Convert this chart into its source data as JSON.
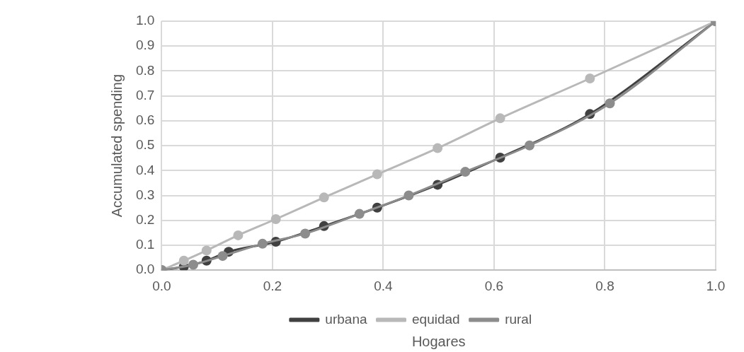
{
  "chart_data": {
    "type": "line",
    "xlabel": "Hogares",
    "ylabel": "Accumulated spending",
    "series": [
      {
        "name": "urbana",
        "color": "#404040",
        "x": [
          0,
          0.04,
          0.081,
          0.121,
          0.206,
          0.293,
          0.389,
          0.498,
          0.611,
          0.773,
          1
        ],
        "values": [
          0,
          0.014,
          0.038,
          0.074,
          0.114,
          0.177,
          0.251,
          0.343,
          0.452,
          0.627,
          1
        ]
      },
      {
        "name": "equidad",
        "color": "#b8b8b8",
        "x": [
          0,
          0.04,
          0.081,
          0.138,
          0.206,
          0.293,
          0.389,
          0.498,
          0.611,
          0.773,
          1
        ],
        "values": [
          0,
          0.038,
          0.079,
          0.14,
          0.205,
          0.292,
          0.385,
          0.49,
          0.61,
          0.77,
          1
        ]
      },
      {
        "name": "rural",
        "color": "#8c8c8c",
        "x": [
          0,
          0.057,
          0.11,
          0.182,
          0.259,
          0.357,
          0.446,
          0.548,
          0.664,
          0.809,
          1
        ],
        "values": [
          0,
          0.022,
          0.057,
          0.106,
          0.147,
          0.226,
          0.3,
          0.395,
          0.501,
          0.67,
          1
        ]
      }
    ],
    "xlim": [
      0,
      1
    ],
    "xticks": [
      {
        "value": 0,
        "label": "0.0"
      },
      0.2,
      0.4,
      0.6,
      0.8,
      {
        "value": 1,
        "label": "1.0"
      }
    ],
    "ylim": [
      0,
      1
    ],
    "yticks": [
      {
        "value": 0,
        "label": "0.0"
      },
      0.1,
      0.2,
      0.3,
      0.4,
      0.5,
      0.6,
      0.7,
      0.8,
      0.9,
      {
        "value": 1,
        "label": "1.0"
      }
    ],
    "grid": true,
    "legend": "bottom",
    "marker": "circle",
    "line_style": "solid"
  }
}
